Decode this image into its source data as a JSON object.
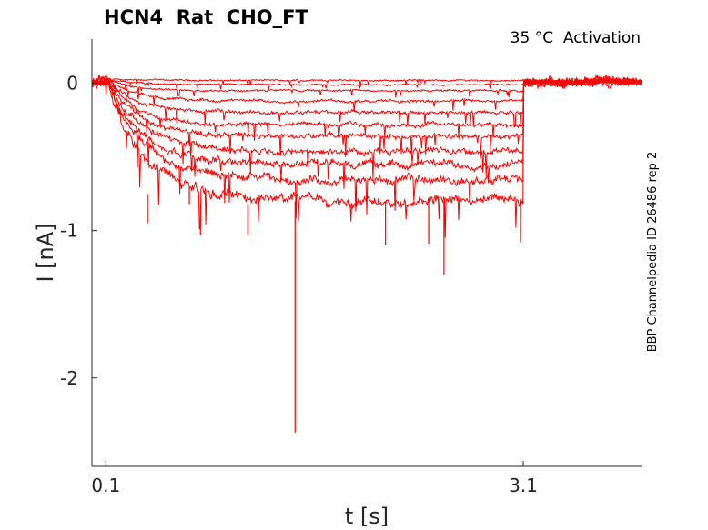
{
  "chart_data": {
    "type": "line",
    "title": "HCN4  Rat  CHO_FT",
    "annotation": "35 °C  Activation",
    "side_label": "BBP Channelpedia ID 26486 rep 2",
    "xlabel": "t [s]",
    "ylabel": "I [nA]",
    "xlim": [
      0.0,
      3.95
    ],
    "ylim": [
      -2.6,
      0.3
    ],
    "xticks": [
      {
        "value": 0.1,
        "label": "0.1"
      },
      {
        "value": 3.1,
        "label": "3.1"
      }
    ],
    "yticks": [
      {
        "value": 0,
        "label": "0"
      },
      {
        "value": -1,
        "label": "-1"
      },
      {
        "value": -2,
        "label": "-2"
      }
    ],
    "trace_color": "#ff0000",
    "step_start_s": 0.1,
    "step_end_s": 3.1,
    "series": [
      {
        "steady": 0.02
      },
      {
        "steady": -0.01
      },
      {
        "steady": -0.05
      },
      {
        "steady": -0.12
      },
      {
        "steady": -0.2
      },
      {
        "steady": -0.28
      },
      {
        "steady": -0.36
      },
      {
        "steady": -0.46
      },
      {
        "steady": -0.55
      },
      {
        "steady": -0.66
      },
      {
        "steady": -0.79
      }
    ]
  }
}
